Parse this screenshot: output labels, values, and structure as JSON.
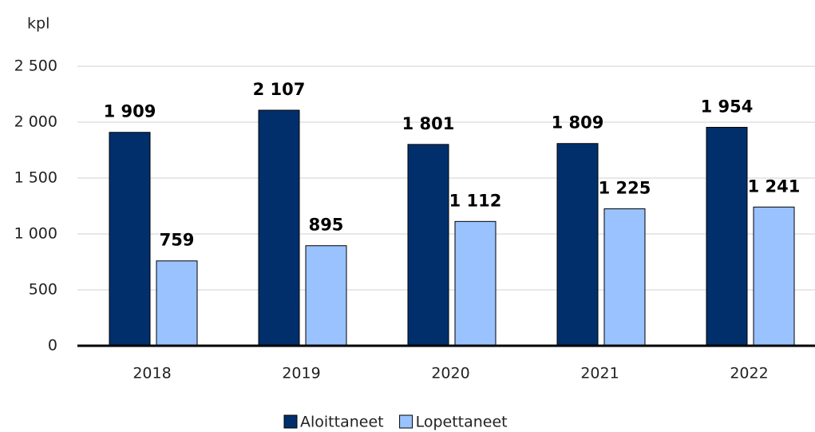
{
  "chart_data": {
    "type": "bar",
    "y_label": "kpl",
    "categories": [
      "2018",
      "2019",
      "2020",
      "2021",
      "2022"
    ],
    "series": [
      {
        "name": "Aloittaneet",
        "color": "#002f6c",
        "values": [
          1909,
          2107,
          1801,
          1809,
          1954
        ],
        "value_labels": [
          "1 909",
          "2 107",
          "1 801",
          "1 809",
          "1 954"
        ]
      },
      {
        "name": "Lopettaneet",
        "color": "#99c2ff",
        "values": [
          759,
          895,
          1112,
          1225,
          1241
        ],
        "value_labels": [
          "759",
          "895",
          "1 112",
          "1 225",
          "1 241"
        ]
      }
    ],
    "ylim": [
      0,
      2500
    ],
    "yticks": [
      0,
      500,
      {
        "value": 1000,
        "label": "1 000"
      },
      {
        "value": 1500,
        "label": "1 500"
      },
      {
        "value": 2000,
        "label": "2 000"
      },
      {
        "value": 2500,
        "label": "2 500"
      }
    ],
    "grid": true,
    "legend": "bottom"
  }
}
